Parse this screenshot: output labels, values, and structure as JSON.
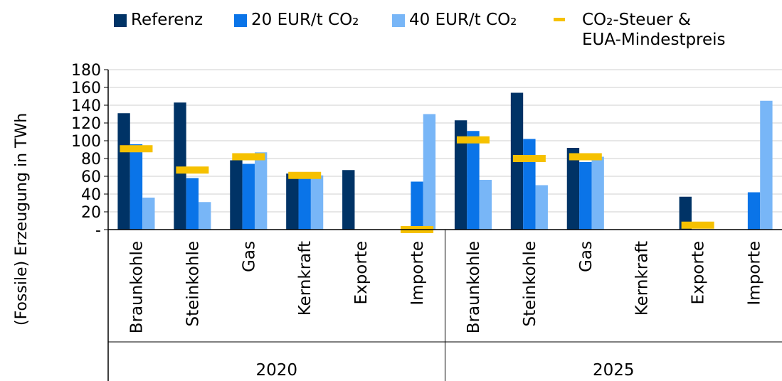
{
  "chart_data": {
    "type": "bar",
    "ylabel": "(Fossile) Erzeugung in TWh",
    "ylim": [
      0,
      180
    ],
    "yticks": [
      "-",
      "20",
      "40",
      "60",
      "80",
      "100",
      "120",
      "140",
      "160",
      "180"
    ],
    "grid": true,
    "legend_position": "top",
    "groups": [
      {
        "label": "2020",
        "categories": [
          "Braunkohle",
          "Steinkohle",
          "Gas",
          "Kernkraft",
          "Exporte",
          "Importe"
        ]
      },
      {
        "label": "2025",
        "categories": [
          "Braunkohle",
          "Steinkohle",
          "Gas",
          "Kernkraft",
          "Exporte",
          "Importe"
        ]
      }
    ],
    "series": [
      {
        "name": "Referenz",
        "color": "#003366",
        "values": [
          131,
          143,
          78,
          63,
          67,
          0,
          123,
          154,
          92,
          0,
          37,
          0
        ]
      },
      {
        "name": "20 EUR/t CO₂",
        "color": "#0a74e8",
        "values": [
          96,
          58,
          74,
          61,
          0,
          54,
          111,
          102,
          76,
          0,
          0,
          42
        ]
      },
      {
        "name": "40 EUR/t CO₂",
        "color": "#78b6f7",
        "values": [
          36,
          31,
          87,
          61,
          0,
          130,
          56,
          50,
          82,
          0,
          0,
          145
        ]
      }
    ],
    "markers": {
      "name_line1": "CO₂-Steuer &",
      "name_line2": "EUA-Mindestpreis",
      "color": "#f6c100",
      "values": [
        91,
        67,
        82,
        61,
        null,
        0,
        101,
        80,
        82,
        null,
        5,
        null
      ]
    }
  }
}
